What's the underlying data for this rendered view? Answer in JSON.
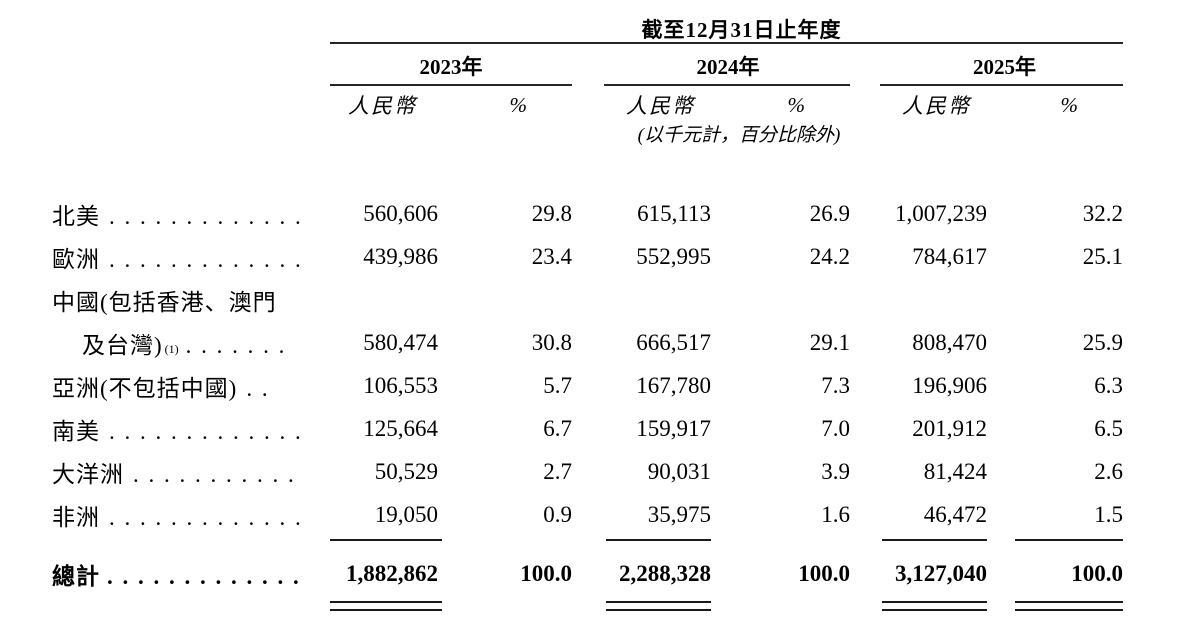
{
  "table": {
    "period_header": "截至12月31日止年度",
    "years": [
      "2023年",
      "2024年",
      "2025年"
    ],
    "subheader": {
      "currency": "人民幣",
      "percent": "%"
    },
    "unit_note": "(以千元計，百分比除外)",
    "rows": [
      {
        "label": "北美",
        "leader": ". . . . . . . . . . . . .",
        "values": [
          "560,606",
          "29.8",
          "615,113",
          "26.9",
          "1,007,239",
          "32.2"
        ]
      },
      {
        "label": "歐洲",
        "leader": ". . . . . . . . . . . . .",
        "values": [
          "439,986",
          "23.4",
          "552,995",
          "24.2",
          "784,617",
          "25.1"
        ]
      },
      {
        "label": "中國(包括香港、澳門",
        "leader": "",
        "values": [
          "",
          "",
          "",
          "",
          "",
          ""
        ]
      },
      {
        "label": "及台灣)",
        "footnote": "(1)",
        "indent": true,
        "leader": ". . . . . . .",
        "values": [
          "580,474",
          "30.8",
          "666,517",
          "29.1",
          "808,470",
          "25.9"
        ]
      },
      {
        "label": "亞洲(不包括中國)",
        "leader": ". .",
        "values": [
          "106,553",
          "5.7",
          "167,780",
          "7.3",
          "196,906",
          "6.3"
        ]
      },
      {
        "label": "南美",
        "leader": ". . . . . . . . . . . . .",
        "values": [
          "125,664",
          "6.7",
          "159,917",
          "7.0",
          "201,912",
          "6.5"
        ]
      },
      {
        "label": "大洋洲",
        "leader": ". . . . . . . . . . .",
        "values": [
          "50,529",
          "2.7",
          "90,031",
          "3.9",
          "81,424",
          "2.6"
        ]
      },
      {
        "label": "非洲",
        "leader": ". . . . . . . . . . . . .",
        "values": [
          "19,050",
          "0.9",
          "35,975",
          "1.6",
          "46,472",
          "1.5"
        ]
      }
    ],
    "total": {
      "label": "總計",
      "leader": ". . . . . . . . . . . . .",
      "values": [
        "1,882,862",
        "100.0",
        "2,288,328",
        "100.0",
        "3,127,040",
        "100.0"
      ]
    }
  }
}
